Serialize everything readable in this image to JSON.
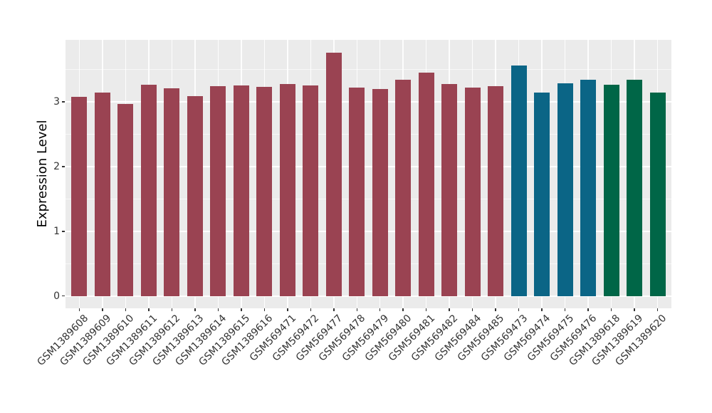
{
  "chart_data": {
    "type": "bar",
    "title": "",
    "xlabel": "",
    "ylabel": "Expression Level",
    "categories": [
      "GSM1389608",
      "GSM1389609",
      "GSM1389610",
      "GSM1389611",
      "GSM1389612",
      "GSM1389613",
      "GSM1389614",
      "GSM1389615",
      "GSM1389616",
      "GSM569471",
      "GSM569472",
      "GSM569477",
      "GSM569478",
      "GSM569479",
      "GSM569480",
      "GSM569481",
      "GSM569482",
      "GSM569484",
      "GSM569485",
      "GSM569473",
      "GSM569474",
      "GSM569475",
      "GSM569476",
      "GSM1389618",
      "GSM1389619",
      "GSM1389620"
    ],
    "values": [
      3.08,
      3.14,
      2.97,
      3.27,
      3.21,
      3.09,
      3.24,
      3.25,
      3.23,
      3.28,
      3.26,
      3.76,
      3.22,
      3.2,
      3.34,
      3.45,
      3.28,
      3.22,
      3.24,
      3.56,
      3.15,
      3.29,
      3.34,
      3.27,
      3.34,
      3.15
    ],
    "bar_groups": [
      "red",
      "red",
      "red",
      "red",
      "red",
      "red",
      "red",
      "red",
      "red",
      "red",
      "red",
      "red",
      "red",
      "red",
      "red",
      "red",
      "red",
      "red",
      "red",
      "blue",
      "blue",
      "blue",
      "blue",
      "green",
      "green",
      "green"
    ],
    "group_colors": {
      "red": "#9A4352",
      "blue": "#0B6586",
      "green": "#006647"
    },
    "yticks": [
      0,
      1,
      2,
      3
    ],
    "ylim": [
      -0.19,
      3.96
    ],
    "grid": true,
    "legend": "none",
    "panel_bg": "#EBEBEB",
    "grid_color": "#FFFFFF",
    "axis_text_color": "#333333"
  }
}
